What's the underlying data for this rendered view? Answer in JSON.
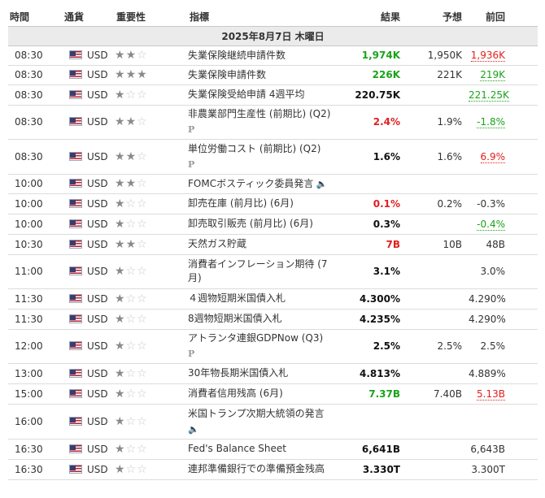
{
  "headers": {
    "time": "時間",
    "currency": "通貨",
    "importance": "重要性",
    "event": "指標",
    "actual": "結果",
    "forecast": "予想",
    "previous": "前回"
  },
  "date_label": "2025年8月7日 木曜日",
  "colors": {
    "positive": "#1aa31a",
    "negative": "#e02020",
    "neutral": "#111111"
  },
  "events": [
    {
      "time": "08:30",
      "currency": "USD",
      "stars": 2,
      "event": "失業保険継続申請件数",
      "actual": "1,974K",
      "actual_color": "green",
      "forecast": "1,950K",
      "previous": "1,936K",
      "previous_style": "u-red"
    },
    {
      "time": "08:30",
      "currency": "USD",
      "stars": 3,
      "event": "失業保険申請件数",
      "actual": "226K",
      "actual_color": "green",
      "forecast": "221K",
      "previous": "219K",
      "previous_style": "u-green"
    },
    {
      "time": "08:30",
      "currency": "USD",
      "stars": 1,
      "event": "失業保険受給申請 4週平均",
      "actual": "220.75K",
      "actual_color": "black",
      "forecast": "",
      "previous": "221.25K",
      "previous_style": "u-green"
    },
    {
      "time": "08:30",
      "currency": "USD",
      "stars": 2,
      "event": "非農業部門生産性 (前期比) (Q2)",
      "extra": "preliminary-icon",
      "actual": "2.4%",
      "actual_color": "red",
      "forecast": "1.9%",
      "previous": "-1.8%",
      "previous_style": "u-green"
    },
    {
      "time": "08:30",
      "currency": "USD",
      "stars": 2,
      "event": "単位労働コスト (前期比) (Q2)",
      "extra": "preliminary-icon",
      "actual": "1.6%",
      "actual_color": "black",
      "forecast": "1.6%",
      "previous": "6.9%",
      "previous_style": "u-red"
    },
    {
      "time": "10:00",
      "currency": "USD",
      "stars": 2,
      "event": "FOMCボスティック委員発言",
      "extra_inline": "speaker-icon",
      "actual": "",
      "actual_color": "black",
      "forecast": "",
      "previous": "",
      "previous_style": ""
    },
    {
      "time": "10:00",
      "currency": "USD",
      "stars": 1,
      "event": "卸売在庫 (前月比) (6月)",
      "actual": "0.1%",
      "actual_color": "red",
      "forecast": "0.2%",
      "previous": "-0.3%",
      "previous_style": "plain"
    },
    {
      "time": "10:00",
      "currency": "USD",
      "stars": 1,
      "event": "卸売取引販売 (前月比) (6月)",
      "actual": "0.3%",
      "actual_color": "black",
      "forecast": "",
      "previous": "-0.4%",
      "previous_style": "u-green"
    },
    {
      "time": "10:30",
      "currency": "USD",
      "stars": 2,
      "event": "天然ガス貯蔵",
      "actual": "7B",
      "actual_color": "red",
      "forecast": "10B",
      "previous": "48B",
      "previous_style": "plain"
    },
    {
      "time": "11:00",
      "currency": "USD",
      "stars": 1,
      "event": "消費者インフレーション期待 (7月)",
      "actual": "3.1%",
      "actual_color": "black",
      "forecast": "",
      "previous": "3.0%",
      "previous_style": "plain"
    },
    {
      "time": "11:30",
      "currency": "USD",
      "stars": 1,
      "event": "４週物短期米国債入札",
      "actual": "4.300%",
      "actual_color": "black",
      "forecast": "",
      "previous": "4.290%",
      "previous_style": "plain"
    },
    {
      "time": "11:30",
      "currency": "USD",
      "stars": 1,
      "event": "8週物短期米国債入札",
      "actual": "4.235%",
      "actual_color": "black",
      "forecast": "",
      "previous": "4.290%",
      "previous_style": "plain"
    },
    {
      "time": "12:00",
      "currency": "USD",
      "stars": 1,
      "event": "アトランタ連銀GDPNow (Q3)",
      "extra": "preliminary-icon",
      "actual": "2.5%",
      "actual_color": "black",
      "forecast": "2.5%",
      "previous": "2.5%",
      "previous_style": "plain"
    },
    {
      "time": "13:00",
      "currency": "USD",
      "stars": 1,
      "event": "30年物長期米国債入札",
      "actual": "4.813%",
      "actual_color": "black",
      "forecast": "",
      "previous": "4.889%",
      "previous_style": "plain"
    },
    {
      "time": "15:00",
      "currency": "USD",
      "stars": 1,
      "event": "消費者信用残高 (6月)",
      "actual": "7.37B",
      "actual_color": "green",
      "forecast": "7.40B",
      "previous": "5.13B",
      "previous_style": "u-red"
    },
    {
      "time": "16:00",
      "currency": "USD",
      "stars": 1,
      "event": "米国トランプ次期大統領の発言",
      "extra": "speaker-icon",
      "actual": "",
      "actual_color": "black",
      "forecast": "",
      "previous": "",
      "previous_style": ""
    },
    {
      "time": "16:30",
      "currency": "USD",
      "stars": 1,
      "event": "Fed's Balance Sheet",
      "actual": "6,641B",
      "actual_color": "black",
      "forecast": "",
      "previous": "6,643B",
      "previous_style": "plain"
    },
    {
      "time": "16:30",
      "currency": "USD",
      "stars": 1,
      "event": "連邦準備銀行での準備預金残高",
      "actual": "3.330T",
      "actual_color": "black",
      "forecast": "",
      "previous": "3.300T",
      "previous_style": "plain"
    }
  ]
}
